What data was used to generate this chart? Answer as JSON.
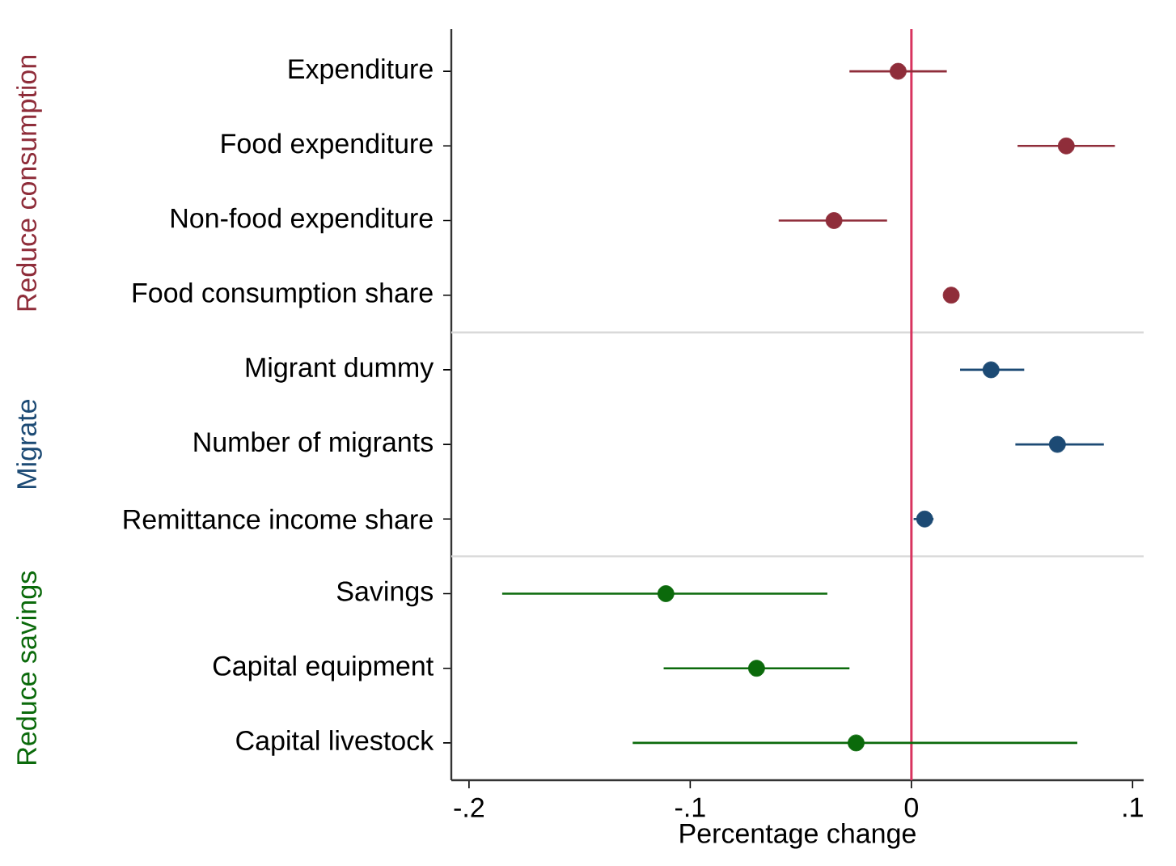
{
  "chart_data": {
    "type": "scatter",
    "orientation": "horizontal",
    "xlabel": "Percentage change",
    "categories": [
      "Expenditure",
      "Food expenditure",
      "Non-food expenditure",
      "Food consumption share",
      "Migrant dummy",
      "Number of migrants",
      "Remittance income share",
      "Savings",
      "Capital equipment",
      "Capital livestock"
    ],
    "series": [
      {
        "name": "Reduce consumption",
        "color": "#8f2d3a",
        "values": [
          -0.006,
          0.07,
          -0.035,
          0.018,
          null,
          null,
          null,
          null,
          null,
          null
        ],
        "errors": [
          [
            -0.028,
            0.016
          ],
          [
            0.048,
            0.092
          ],
          [
            -0.06,
            -0.011
          ],
          [
            0.016,
            0.02
          ],
          null,
          null,
          null,
          null,
          null,
          null
        ]
      },
      {
        "name": "Migrate",
        "color": "#1c4a74",
        "values": [
          null,
          null,
          null,
          null,
          0.036,
          0.066,
          0.006,
          null,
          null,
          null
        ],
        "errors": [
          null,
          null,
          null,
          null,
          [
            0.022,
            0.051
          ],
          [
            0.047,
            0.087
          ],
          [
            0.001,
            0.01
          ],
          null,
          null,
          null
        ]
      },
      {
        "name": "Reduce savings",
        "color": "#0b6a0b",
        "values": [
          null,
          null,
          null,
          null,
          null,
          null,
          null,
          -0.111,
          -0.07,
          -0.025
        ],
        "errors": [
          null,
          null,
          null,
          null,
          null,
          null,
          null,
          [
            -0.185,
            -0.038
          ],
          [
            -0.112,
            -0.028
          ],
          [
            -0.126,
            0.075
          ]
        ]
      }
    ],
    "xlim": [
      -0.208,
      0.105
    ],
    "xticks": [
      {
        "value": -0.2,
        "label": "-.2"
      },
      {
        "value": -0.1,
        "label": "-.1"
      },
      0,
      {
        "value": 0.1,
        "label": ".1"
      }
    ],
    "ref_lines": [
      {
        "axis": "x",
        "value": 0,
        "color": "#d8345f"
      }
    ],
    "marker": "circle"
  }
}
